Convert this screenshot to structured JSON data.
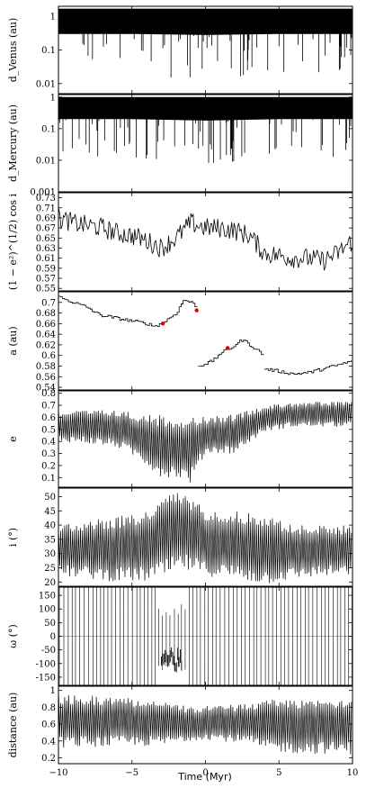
{
  "chart_data": [
    {
      "type": "line",
      "ylabel": "d_Venus (au)",
      "yscale": "log",
      "ylim": [
        0.005,
        2
      ],
      "yticks": [
        {
          "v": 1,
          "t": "1"
        },
        {
          "v": 0.1,
          "t": "0.1"
        },
        {
          "v": 0.01,
          "t": "0.01"
        }
      ],
      "style": "dense",
      "series": [
        {
          "x": [
            -10,
            -5,
            0,
            5,
            10
          ],
          "upper": [
            1.7,
            1.7,
            1.7,
            1.7,
            1.7
          ],
          "lower": [
            0.3,
            0.3,
            0.28,
            0.3,
            0.3
          ],
          "spike_min": [
            0.02,
            0.02,
            0.01,
            0.02,
            0.02
          ]
        }
      ]
    },
    {
      "type": "line",
      "ylabel": "d_Mercury (au)",
      "yscale": "log",
      "ylim": [
        0.001,
        1.2
      ],
      "yticks": [
        {
          "v": 1,
          "t": "1"
        },
        {
          "v": 0.1,
          "t": "0.1"
        },
        {
          "v": 0.01,
          "t": "0.01"
        },
        {
          "v": 0.001,
          "t": "0.001"
        }
      ],
      "style": "dense",
      "series": [
        {
          "x": [
            -10,
            -5,
            0,
            5,
            10
          ],
          "upper": [
            1,
            1,
            1,
            1,
            1
          ],
          "lower": [
            0.2,
            0.2,
            0.18,
            0.2,
            0.2
          ],
          "spike_min": [
            0.008,
            0.01,
            0.006,
            0.01,
            0.01
          ]
        }
      ]
    },
    {
      "type": "line",
      "ylabel": "(1 − e²)^(1/2) cos i",
      "ylim": [
        0.545,
        0.74
      ],
      "yticks": [
        {
          "v": 0.73,
          "t": "0.73"
        },
        {
          "v": 0.71,
          "t": "0.71"
        },
        {
          "v": 0.69,
          "t": "0.69"
        },
        {
          "v": 0.67,
          "t": "0.67"
        },
        {
          "v": 0.65,
          "t": "0.65"
        },
        {
          "v": 0.63,
          "t": "0.63"
        },
        {
          "v": 0.61,
          "t": "0.61"
        },
        {
          "v": 0.59,
          "t": "0.59"
        },
        {
          "v": 0.57,
          "t": "0.57"
        },
        {
          "v": 0.55,
          "t": "0.55"
        }
      ],
      "style": "noisy",
      "series": [
        {
          "x": [
            -10,
            -9,
            -8,
            -7,
            -6,
            -5,
            -4,
            -3,
            -2,
            -1,
            0,
            1,
            2,
            3,
            4,
            5,
            6,
            7,
            8,
            9,
            10
          ],
          "y": [
            0.69,
            0.68,
            0.675,
            0.67,
            0.66,
            0.655,
            0.645,
            0.63,
            0.65,
            0.68,
            0.67,
            0.67,
            0.665,
            0.655,
            0.62,
            0.615,
            0.61,
            0.61,
            0.605,
            0.62,
            0.645
          ]
        }
      ]
    },
    {
      "type": "line",
      "ylabel": "a (au)",
      "ylim": [
        0.535,
        0.72
      ],
      "yticks": [
        {
          "v": 0.7,
          "t": "0.7"
        },
        {
          "v": 0.68,
          "t": "0.68"
        },
        {
          "v": 0.66,
          "t": "0.66"
        },
        {
          "v": 0.64,
          "t": "0.64"
        },
        {
          "v": 0.62,
          "t": "0.62"
        },
        {
          "v": 0.6,
          "t": "0.6"
        },
        {
          "v": 0.58,
          "t": "0.58"
        },
        {
          "v": 0.56,
          "t": "0.56"
        },
        {
          "v": 0.54,
          "t": "0.54"
        }
      ],
      "style": "step",
      "series": [
        {
          "x": [
            -10,
            -9,
            -8.5,
            -8,
            -7.5,
            -7,
            -6,
            -5,
            -4,
            -3.5,
            -3,
            -2.5,
            -2,
            -1.5,
            -1,
            -0.5
          ],
          "y": [
            0.71,
            0.7,
            0.695,
            0.69,
            0.68,
            0.675,
            0.67,
            0.665,
            0.66,
            0.655,
            0.66,
            0.67,
            0.68,
            0.705,
            0.7,
            0.69
          ]
        },
        {
          "x": [
            -0.5,
            0,
            0.5,
            1,
            1.5,
            2,
            2.5,
            3,
            3.5,
            4
          ],
          "y": [
            0.58,
            0.585,
            0.59,
            0.605,
            0.61,
            0.62,
            0.63,
            0.62,
            0.61,
            0.6
          ]
        },
        {
          "x": [
            4,
            5,
            6,
            7,
            8,
            9,
            10
          ],
          "y": [
            0.575,
            0.57,
            0.565,
            0.568,
            0.575,
            0.582,
            0.59
          ]
        }
      ],
      "highlight_color": "#e00000",
      "highlights": [
        {
          "x": -2.9,
          "y": 0.66
        },
        {
          "x": -0.6,
          "y": 0.685
        },
        {
          "x": 1.5,
          "y": 0.614
        }
      ]
    },
    {
      "type": "line",
      "ylabel": "e",
      "ylim": [
        0.02,
        0.82
      ],
      "yticks": [
        {
          "v": 0.8,
          "t": "0.8"
        },
        {
          "v": 0.7,
          "t": "0.7"
        },
        {
          "v": 0.6,
          "t": "0.6"
        },
        {
          "v": 0.5,
          "t": "0.5"
        },
        {
          "v": 0.4,
          "t": "0.4"
        },
        {
          "v": 0.3,
          "t": "0.3"
        },
        {
          "v": 0.2,
          "t": "0.2"
        },
        {
          "v": 0.1,
          "t": "0.1"
        }
      ],
      "style": "osc",
      "series": [
        {
          "x": [
            -10,
            -8,
            -6,
            -4.5,
            -3,
            -2,
            -1,
            0,
            2,
            4,
            6,
            8,
            10
          ],
          "upper": [
            0.65,
            0.66,
            0.66,
            0.63,
            0.62,
            0.6,
            0.62,
            0.6,
            0.63,
            0.7,
            0.73,
            0.73,
            0.73
          ],
          "lower": [
            0.4,
            0.38,
            0.35,
            0.25,
            0.1,
            0.1,
            0.05,
            0.3,
            0.3,
            0.48,
            0.52,
            0.52,
            0.52
          ]
        }
      ]
    },
    {
      "type": "line",
      "ylabel": "i (°)",
      "ylim": [
        18.5,
        53
      ],
      "yticks": [
        {
          "v": 50,
          "t": "50"
        },
        {
          "v": 45,
          "t": "45"
        },
        {
          "v": 40,
          "t": "40"
        },
        {
          "v": 35,
          "t": "35"
        },
        {
          "v": 30,
          "t": "30"
        },
        {
          "v": 25,
          "t": "25"
        },
        {
          "v": 20,
          "t": "20"
        }
      ],
      "style": "osc",
      "series": [
        {
          "x": [
            -10,
            -8,
            -6,
            -4,
            -2.5,
            -1.5,
            0,
            2,
            4,
            6,
            8,
            10
          ],
          "upper": [
            40,
            42,
            43,
            45,
            51,
            52,
            46,
            45,
            44,
            40,
            40,
            40
          ],
          "lower": [
            22,
            21,
            20,
            20,
            22,
            24,
            22,
            21,
            19,
            21,
            22,
            22
          ]
        }
      ]
    },
    {
      "type": "line",
      "ylabel": "ω (°)",
      "ylim": [
        -180,
        180
      ],
      "yticks": [
        {
          "v": 150,
          "t": "150"
        },
        {
          "v": 100,
          "t": "100"
        },
        {
          "v": 50,
          "t": "50"
        },
        {
          "v": 0,
          "t": "0"
        },
        {
          "v": -50,
          "t": "-50"
        },
        {
          "v": -100,
          "t": "-100"
        },
        {
          "v": -150,
          "t": "-150"
        }
      ],
      "style": "sawtooth",
      "series": [
        {
          "x": [
            -10,
            10
          ],
          "y": [
            -180,
            180
          ]
        }
      ]
    },
    {
      "type": "line",
      "ylabel": "distance (au)",
      "ylim": [
        0.13,
        1.05
      ],
      "yticks": [
        {
          "v": 1,
          "t": "1"
        },
        {
          "v": 0.8,
          "t": "0.8"
        },
        {
          "v": 0.6,
          "t": "0.6"
        },
        {
          "v": 0.4,
          "t": "0.4"
        },
        {
          "v": 0.2,
          "t": "0.2"
        }
      ],
      "style": "osc",
      "series": [
        {
          "x": [
            -10,
            -6,
            -3,
            -1,
            0,
            1,
            3,
            4,
            6,
            10
          ],
          "upper": [
            0.95,
            0.93,
            0.88,
            0.8,
            0.82,
            0.82,
            0.85,
            0.9,
            0.9,
            0.92
          ],
          "lower": [
            0.32,
            0.33,
            0.34,
            0.4,
            0.42,
            0.4,
            0.36,
            0.28,
            0.25,
            0.24
          ]
        }
      ]
    }
  ],
  "xaxis": {
    "label": "Time (Myr)",
    "xlim": [
      -10,
      10
    ],
    "ticks": [
      {
        "v": -10,
        "t": "−10"
      },
      {
        "v": -5,
        "t": "−5"
      },
      {
        "v": 0,
        "t": "0"
      },
      {
        "v": 5,
        "t": "5"
      },
      {
        "v": 10,
        "t": "10"
      }
    ]
  }
}
